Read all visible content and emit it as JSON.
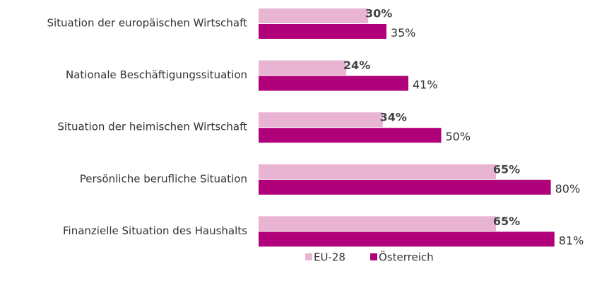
{
  "chart_data": {
    "type": "bar",
    "orientation": "horizontal",
    "categories": [
      "Situation der europäischen Wirtschaft",
      "Nationale Beschäftigungssituation",
      "Situation der heimischen Wirtschaft",
      "Persönliche berufliche Situation",
      "Finanzielle Situation des Haushalts"
    ],
    "series": [
      {
        "name": "EU-28",
        "color": "#e8b4d2",
        "values": [
          30,
          24,
          34,
          65,
          65
        ],
        "value_labels": [
          "30%",
          "24%",
          "34%",
          "65%",
          "65%"
        ]
      },
      {
        "name": "Österreich",
        "color": "#b0007a",
        "values": [
          35,
          41,
          50,
          80,
          81
        ],
        "value_labels": [
          "35%",
          "41%",
          "50%",
          "80%",
          "81%"
        ]
      }
    ],
    "legend": "bottom"
  }
}
